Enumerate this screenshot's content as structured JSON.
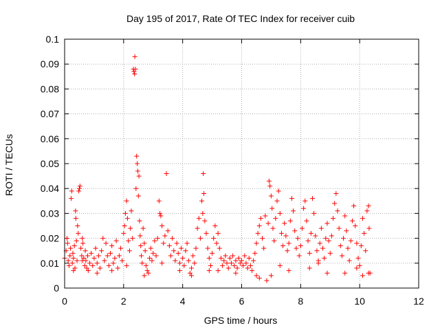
{
  "chart_data": {
    "type": "scatter",
    "title": "Day 195 of 2017, Rate Of TEC Index for receiver cuib",
    "xlabel": "GPS time / hours",
    "ylabel": "ROTI / TECUs",
    "xlim": [
      0,
      12
    ],
    "ylim": [
      0,
      0.1
    ],
    "xticks": [
      0,
      2,
      4,
      6,
      8,
      10,
      12
    ],
    "yticks": [
      0,
      0.01,
      0.02,
      0.03,
      0.04,
      0.05,
      0.06,
      0.07,
      0.08,
      0.09,
      0.1
    ],
    "xtick_labels": [
      "0",
      "2",
      "4",
      "6",
      "8",
      "10",
      "12"
    ],
    "ytick_labels": [
      "0",
      "0.01",
      "0.02",
      "0.03",
      "0.04",
      "0.05",
      "0.06",
      "0.07",
      "0.08",
      "0.09",
      "0.1"
    ],
    "grid": true,
    "marker": "plus",
    "marker_color": "#ff0000",
    "series": [
      {
        "name": "ROTI",
        "points": [
          [
            0.0,
            0.012
          ],
          [
            0.05,
            0.015
          ],
          [
            0.08,
            0.02
          ],
          [
            0.1,
            0.018
          ],
          [
            0.12,
            0.011
          ],
          [
            0.15,
            0.009
          ],
          [
            0.18,
            0.013
          ],
          [
            0.2,
            0.016
          ],
          [
            0.22,
            0.036
          ],
          [
            0.24,
            0.039
          ],
          [
            0.26,
            0.01
          ],
          [
            0.28,
            0.014
          ],
          [
            0.3,
            0.012
          ],
          [
            0.33,
            0.017
          ],
          [
            0.35,
            0.008
          ],
          [
            0.37,
            0.031
          ],
          [
            0.38,
            0.028
          ],
          [
            0.4,
            0.019
          ],
          [
            0.42,
            0.011
          ],
          [
            0.44,
            0.025
          ],
          [
            0.46,
            0.022
          ],
          [
            0.48,
            0.039
          ],
          [
            0.5,
            0.04
          ],
          [
            0.52,
            0.041
          ],
          [
            0.55,
            0.016
          ],
          [
            0.58,
            0.013
          ],
          [
            0.6,
            0.02
          ],
          [
            0.62,
            0.018
          ],
          [
            0.65,
            0.012
          ],
          [
            0.68,
            0.009
          ],
          [
            0.7,
            0.015
          ],
          [
            0.72,
            0.011
          ],
          [
            0.75,
            0.008
          ],
          [
            0.78,
            0.013
          ],
          [
            0.8,
            0.007
          ],
          [
            0.85,
            0.01
          ],
          [
            0.9,
            0.014
          ],
          [
            0.95,
            0.009
          ],
          [
            1.0,
            0.012
          ],
          [
            1.05,
            0.016
          ],
          [
            1.1,
            0.01
          ],
          [
            1.15,
            0.013
          ],
          [
            1.2,
            0.008
          ],
          [
            1.25,
            0.015
          ],
          [
            1.3,
            0.02
          ],
          [
            1.35,
            0.011
          ],
          [
            1.4,
            0.018
          ],
          [
            1.45,
            0.013
          ],
          [
            1.5,
            0.009
          ],
          [
            1.55,
            0.014
          ],
          [
            1.6,
            0.017
          ],
          [
            1.65,
            0.01
          ],
          [
            1.7,
            0.012
          ],
          [
            1.75,
            0.019
          ],
          [
            1.8,
            0.008
          ],
          [
            1.85,
            0.013
          ],
          [
            1.9,
            0.016
          ],
          [
            1.95,
            0.011
          ],
          [
            2.0,
            0.022
          ],
          [
            2.03,
            0.025
          ],
          [
            2.06,
            0.03
          ],
          [
            2.1,
            0.035
          ],
          [
            2.13,
            0.028
          ],
          [
            2.16,
            0.019
          ],
          [
            2.2,
            0.015
          ],
          [
            2.23,
            0.024
          ],
          [
            2.26,
            0.031
          ],
          [
            2.3,
            0.02
          ],
          [
            2.33,
            0.088
          ],
          [
            2.35,
            0.087
          ],
          [
            2.37,
            0.086
          ],
          [
            2.38,
            0.093
          ],
          [
            2.4,
            0.088
          ],
          [
            2.42,
            0.04
          ],
          [
            2.44,
            0.053
          ],
          [
            2.46,
            0.05
          ],
          [
            2.48,
            0.047
          ],
          [
            2.5,
            0.037
          ],
          [
            2.52,
            0.045
          ],
          [
            2.54,
            0.027
          ],
          [
            2.56,
            0.021
          ],
          [
            2.58,
            0.017
          ],
          [
            2.6,
            0.013
          ],
          [
            2.63,
            0.01
          ],
          [
            2.66,
            0.024
          ],
          [
            2.7,
            0.018
          ],
          [
            2.73,
            0.015
          ],
          [
            2.76,
            0.009
          ],
          [
            2.8,
            0.007
          ],
          [
            2.84,
            0.006
          ],
          [
            2.88,
            0.012
          ],
          [
            2.92,
            0.016
          ],
          [
            2.96,
            0.011
          ],
          [
            3.0,
            0.014
          ],
          [
            3.05,
            0.019
          ],
          [
            3.1,
            0.013
          ],
          [
            3.15,
            0.02
          ],
          [
            3.2,
            0.035
          ],
          [
            3.23,
            0.03
          ],
          [
            3.26,
            0.029
          ],
          [
            3.3,
            0.025
          ],
          [
            3.35,
            0.018
          ],
          [
            3.4,
            0.021
          ],
          [
            3.45,
            0.046
          ],
          [
            3.5,
            0.023
          ],
          [
            3.55,
            0.017
          ],
          [
            3.6,
            0.013
          ],
          [
            3.65,
            0.02
          ],
          [
            3.7,
            0.015
          ],
          [
            3.75,
            0.011
          ],
          [
            3.8,
            0.018
          ],
          [
            3.85,
            0.014
          ],
          [
            3.9,
            0.01
          ],
          [
            3.95,
            0.016
          ],
          [
            4.0,
            0.012
          ],
          [
            4.05,
            0.009
          ],
          [
            4.1,
            0.015
          ],
          [
            4.15,
            0.018
          ],
          [
            4.2,
            0.011
          ],
          [
            4.25,
            0.006
          ],
          [
            4.3,
            0.008
          ],
          [
            4.35,
            0.013
          ],
          [
            4.4,
            0.01
          ],
          [
            4.45,
            0.016
          ],
          [
            4.5,
            0.024
          ],
          [
            4.55,
            0.028
          ],
          [
            4.6,
            0.02
          ],
          [
            4.65,
            0.035
          ],
          [
            4.68,
            0.03
          ],
          [
            4.7,
            0.046
          ],
          [
            4.72,
            0.038
          ],
          [
            4.75,
            0.027
          ],
          [
            4.8,
            0.022
          ],
          [
            4.85,
            0.016
          ],
          [
            4.9,
            0.012
          ],
          [
            4.95,
            0.009
          ],
          [
            5.0,
            0.014
          ],
          [
            5.05,
            0.02
          ],
          [
            5.1,
            0.025
          ],
          [
            5.15,
            0.018
          ],
          [
            5.2,
            0.022
          ],
          [
            5.25,
            0.016
          ],
          [
            5.3,
            0.012
          ],
          [
            5.35,
            0.009
          ],
          [
            5.4,
            0.011
          ],
          [
            5.45,
            0.013
          ],
          [
            5.5,
            0.01
          ],
          [
            5.55,
            0.008
          ],
          [
            5.6,
            0.012
          ],
          [
            5.65,
            0.01
          ],
          [
            5.7,
            0.013
          ],
          [
            5.75,
            0.009
          ],
          [
            5.8,
            0.011
          ],
          [
            5.85,
            0.008
          ],
          [
            5.9,
            0.012
          ],
          [
            5.95,
            0.01
          ],
          [
            6.0,
            0.011
          ],
          [
            6.05,
            0.009
          ],
          [
            6.1,
            0.013
          ],
          [
            6.15,
            0.01
          ],
          [
            6.2,
            0.008
          ],
          [
            6.25,
            0.012
          ],
          [
            6.3,
            0.009
          ],
          [
            6.35,
            0.007
          ],
          [
            6.4,
            0.011
          ],
          [
            6.45,
            0.014
          ],
          [
            6.5,
            0.018
          ],
          [
            6.55,
            0.022
          ],
          [
            6.6,
            0.025
          ],
          [
            6.65,
            0.028
          ],
          [
            6.7,
            0.02
          ],
          [
            6.75,
            0.016
          ],
          [
            6.8,
            0.029
          ],
          [
            6.85,
            0.003
          ],
          [
            6.9,
            0.026
          ],
          [
            6.93,
            0.043
          ],
          [
            6.96,
            0.041
          ],
          [
            7.0,
            0.037
          ],
          [
            7.03,
            0.032
          ],
          [
            7.06,
            0.024
          ],
          [
            7.1,
            0.019
          ],
          [
            7.15,
            0.028
          ],
          [
            7.2,
            0.035
          ],
          [
            7.25,
            0.039
          ],
          [
            7.3,
            0.03
          ],
          [
            7.35,
            0.022
          ],
          [
            7.4,
            0.017
          ],
          [
            7.45,
            0.026
          ],
          [
            7.5,
            0.021
          ],
          [
            7.55,
            0.015
          ],
          [
            7.6,
            0.018
          ],
          [
            7.65,
            0.027
          ],
          [
            7.7,
            0.036
          ],
          [
            7.75,
            0.031
          ],
          [
            7.8,
            0.023
          ],
          [
            7.85,
            0.016
          ],
          [
            7.9,
            0.02
          ],
          [
            7.95,
            0.013
          ],
          [
            8.0,
            0.017
          ],
          [
            8.05,
            0.024
          ],
          [
            8.1,
            0.032
          ],
          [
            8.15,
            0.035
          ],
          [
            8.2,
            0.027
          ],
          [
            8.25,
            0.019
          ],
          [
            8.3,
            0.014
          ],
          [
            8.35,
            0.022
          ],
          [
            8.4,
            0.036
          ],
          [
            8.45,
            0.03
          ],
          [
            8.5,
            0.021
          ],
          [
            8.55,
            0.015
          ],
          [
            8.6,
            0.011
          ],
          [
            8.65,
            0.018
          ],
          [
            8.7,
            0.024
          ],
          [
            8.75,
            0.016
          ],
          [
            8.8,
            0.012
          ],
          [
            8.85,
            0.02
          ],
          [
            8.9,
            0.026
          ],
          [
            8.95,
            0.019
          ],
          [
            9.0,
            0.014
          ],
          [
            9.05,
            0.021
          ],
          [
            9.1,
            0.028
          ],
          [
            9.15,
            0.034
          ],
          [
            9.2,
            0.038
          ],
          [
            9.25,
            0.031
          ],
          [
            9.3,
            0.024
          ],
          [
            9.35,
            0.017
          ],
          [
            9.4,
            0.013
          ],
          [
            9.45,
            0.02
          ],
          [
            9.5,
            0.029
          ],
          [
            9.55,
            0.023
          ],
          [
            9.6,
            0.016
          ],
          [
            9.65,
            0.011
          ],
          [
            9.7,
            0.019
          ],
          [
            9.75,
            0.027
          ],
          [
            9.8,
            0.033
          ],
          [
            9.85,
            0.025
          ],
          [
            9.9,
            0.018
          ],
          [
            9.95,
            0.012
          ],
          [
            10.0,
            0.009
          ],
          [
            10.05,
            0.017
          ],
          [
            10.1,
            0.028
          ],
          [
            10.15,
            0.022
          ],
          [
            10.2,
            0.015
          ],
          [
            10.25,
            0.031
          ],
          [
            10.3,
            0.033
          ],
          [
            10.32,
            0.024
          ],
          [
            10.35,
            0.006
          ],
          [
            0.3,
            0.007
          ],
          [
            0.6,
            0.011
          ],
          [
            1.1,
            0.006
          ],
          [
            1.6,
            0.007
          ],
          [
            2.1,
            0.009
          ],
          [
            2.7,
            0.005
          ],
          [
            3.3,
            0.01
          ],
          [
            3.9,
            0.007
          ],
          [
            4.3,
            0.005
          ],
          [
            5.2,
            0.007
          ],
          [
            5.8,
            0.006
          ],
          [
            6.5,
            0.005
          ],
          [
            7.0,
            0.005
          ],
          [
            7.6,
            0.007
          ],
          [
            8.3,
            0.008
          ],
          [
            8.9,
            0.006
          ],
          [
            9.5,
            0.006
          ],
          [
            10.1,
            0.005
          ],
          [
            10.3,
            0.006
          ],
          [
            6.6,
            0.004
          ],
          [
            7.3,
            0.009
          ],
          [
            8.6,
            0.01
          ],
          [
            9.9,
            0.008
          ],
          [
            4.9,
            0.007
          ]
        ]
      }
    ]
  }
}
